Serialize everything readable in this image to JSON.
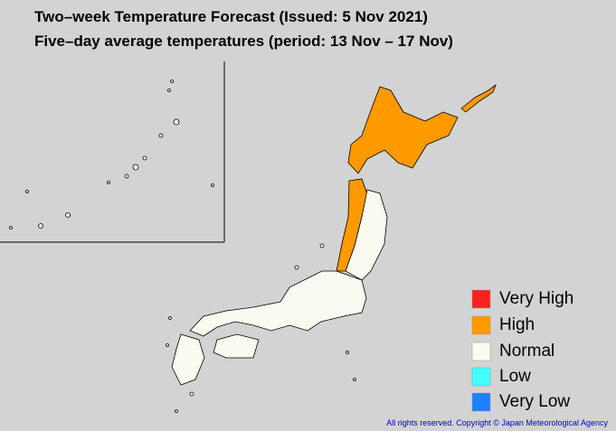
{
  "header": {
    "title": "Two–week Temperature Forecast (Issued: 5 Nov 2021)",
    "subtitle": "Five–day average temperatures (period: 13 Nov – 17 Nov)"
  },
  "legend": {
    "items": [
      {
        "label": "Very High",
        "color": "#ff2020"
      },
      {
        "label": "High",
        "color": "#ff9900"
      },
      {
        "label": "Normal",
        "color": "#fafaf0"
      },
      {
        "label": "Low",
        "color": "#40ffff"
      },
      {
        "label": "Very Low",
        "color": "#1e7fff"
      }
    ]
  },
  "footer": {
    "copyright": "All rights reserved. Copyright © Japan Meteorological Agency"
  }
}
